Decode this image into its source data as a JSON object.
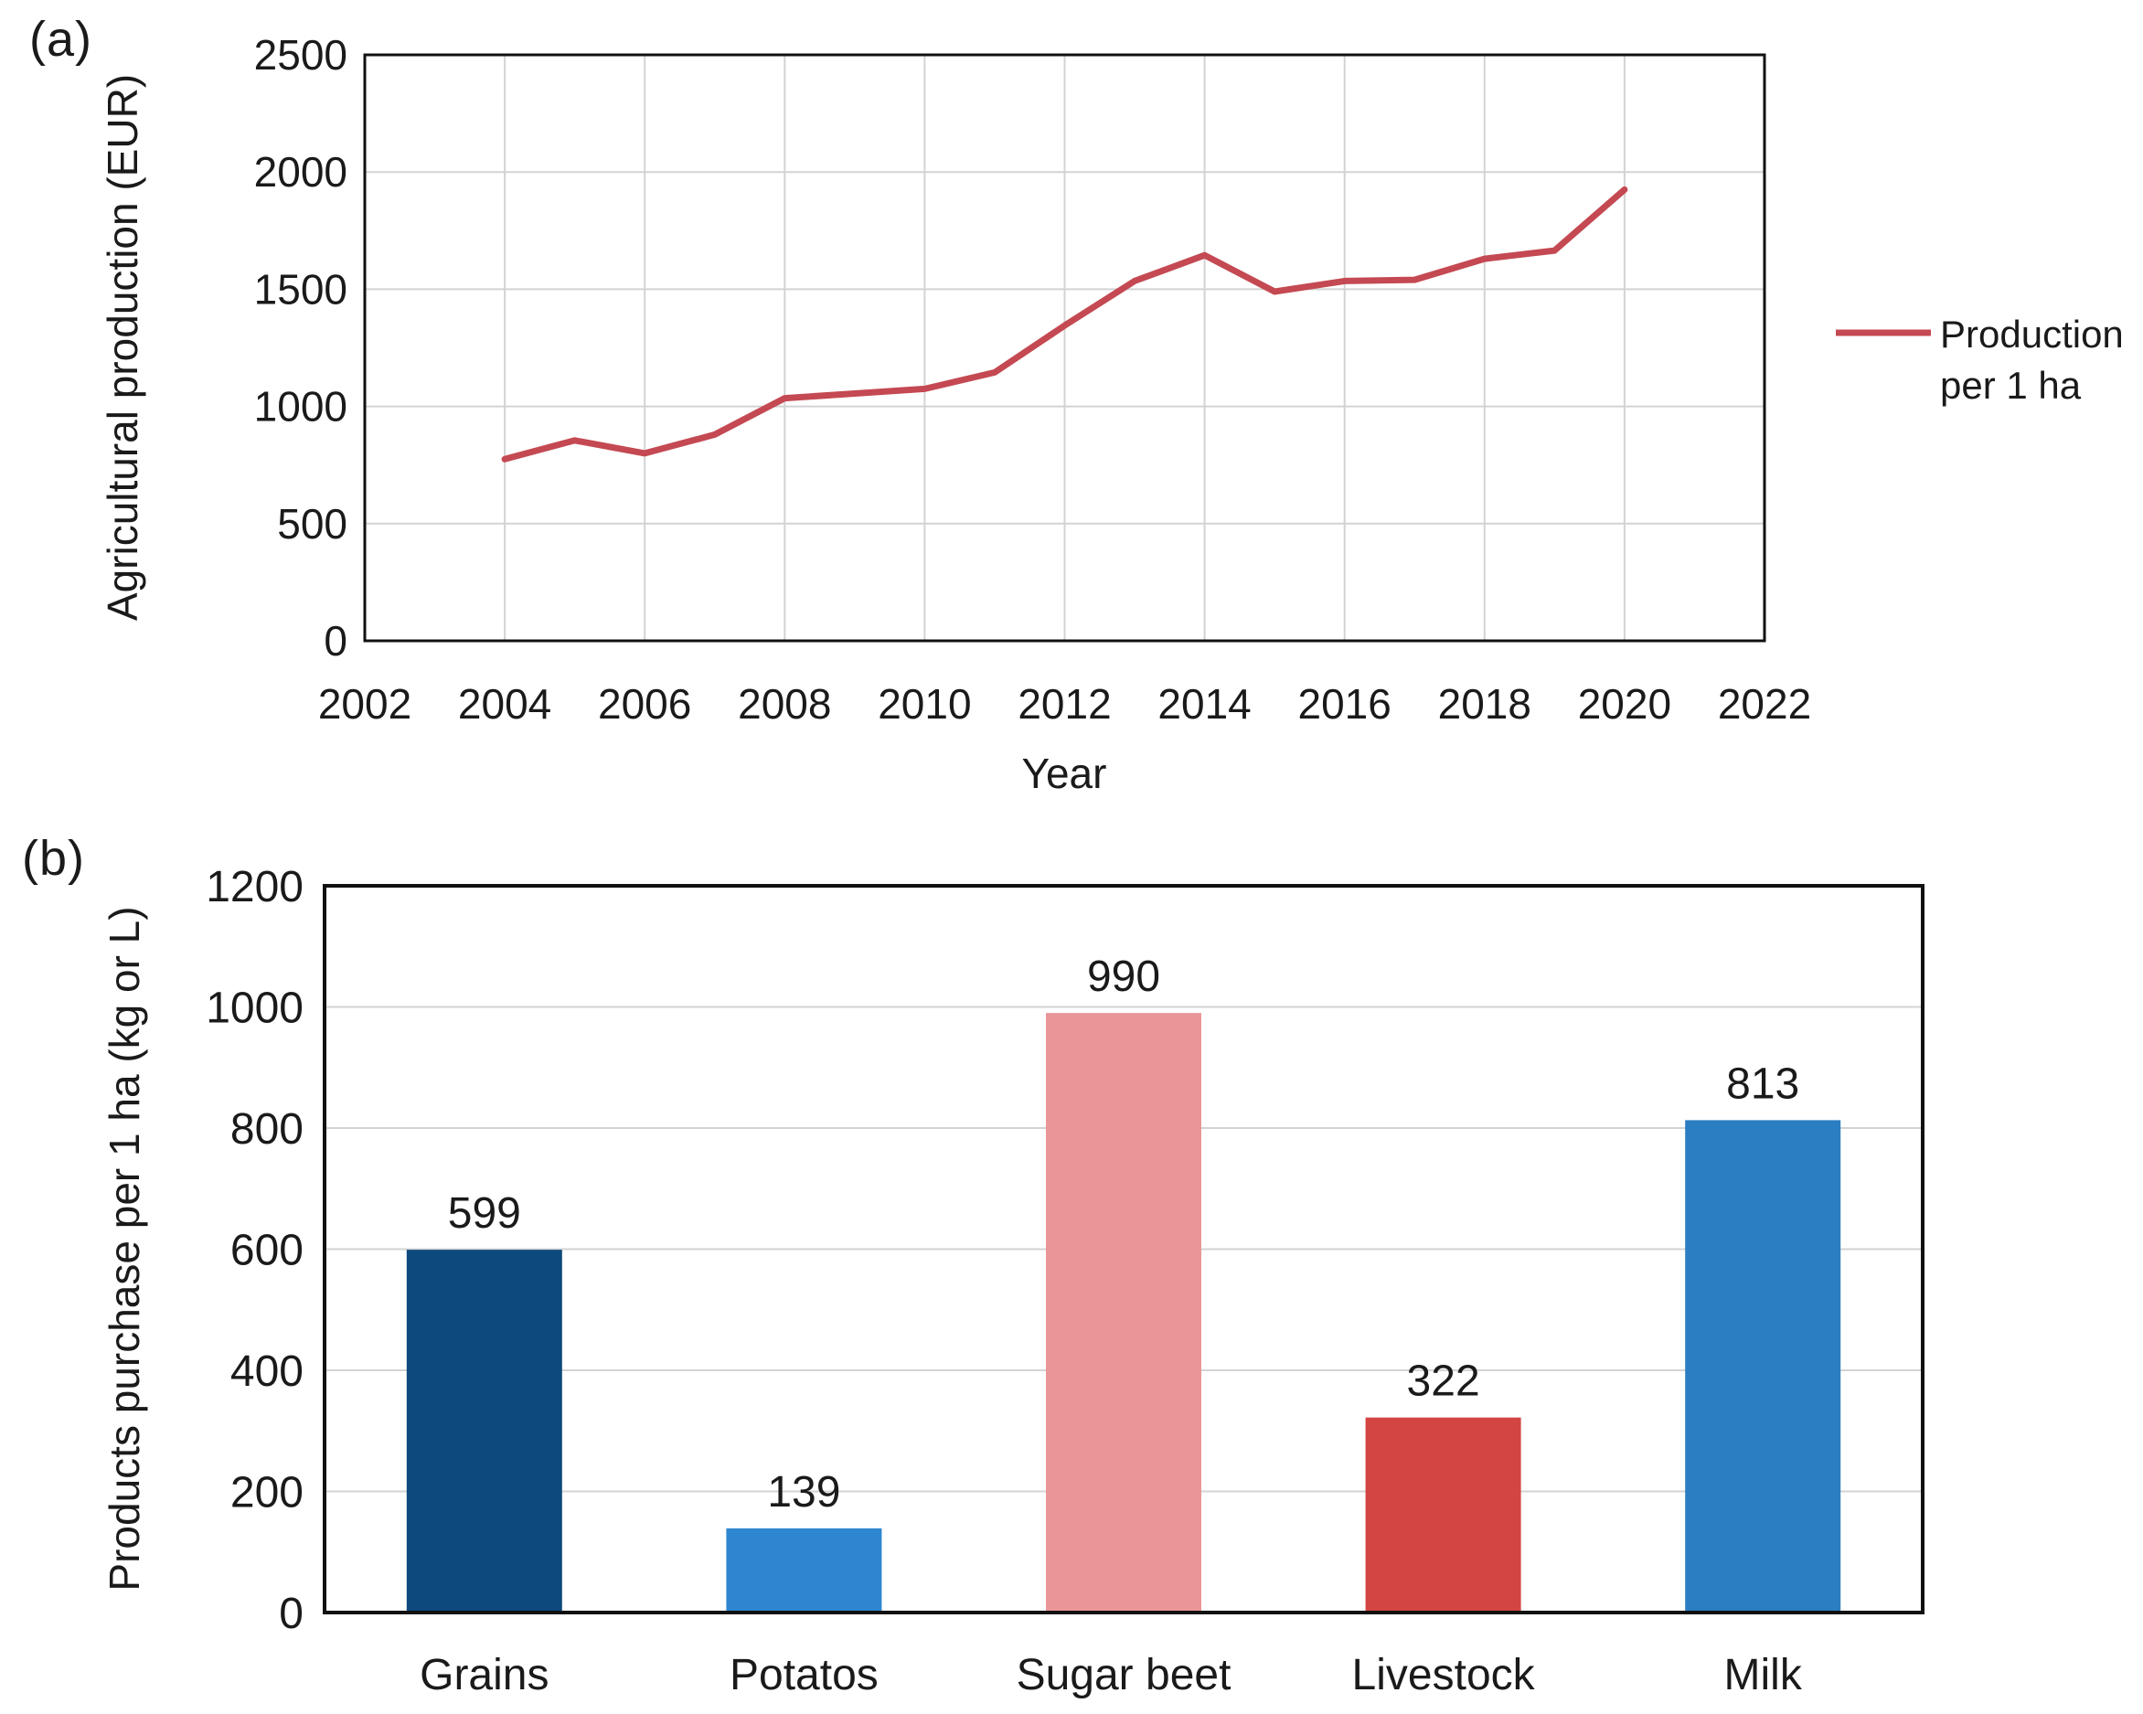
{
  "panel_a": {
    "label": "(a)",
    "legend_lines": [
      "Production",
      "per 1 ha"
    ]
  },
  "panel_b": {
    "label": "(b)"
  },
  "colors": {
    "line_red": "#C44952",
    "grid": "#D3D3D3",
    "frame": "#111111",
    "bar_grains": "#0D497C",
    "bar_potatos": "#2E86D1",
    "bar_sugar_beet": "#EA9698",
    "bar_livestock": "#D34542",
    "bar_milk": "#2B7EC1"
  },
  "chart_data": [
    {
      "type": "line",
      "title": "",
      "xlabel": "Year",
      "ylabel": "Agricultural production (EUR)",
      "xlim": [
        2002,
        2022
      ],
      "ylim": [
        0,
        2500
      ],
      "x_ticks": [
        2002,
        2004,
        2006,
        2008,
        2010,
        2012,
        2014,
        2016,
        2018,
        2020,
        2022
      ],
      "y_ticks": [
        0,
        500,
        1000,
        1500,
        2000,
        2500
      ],
      "grid": true,
      "legend_position": "right",
      "series": [
        {
          "name": "Production per 1 ha",
          "color": "#C44952",
          "x": [
            2004,
            2005,
            2006,
            2007,
            2008,
            2009,
            2010,
            2011,
            2012,
            2013,
            2014,
            2015,
            2016,
            2017,
            2018,
            2019,
            2020
          ],
          "values": [
            775,
            855,
            800,
            880,
            1035,
            1055,
            1075,
            1145,
            1345,
            1535,
            1645,
            1490,
            1535,
            1540,
            1630,
            1665,
            1925
          ]
        }
      ]
    },
    {
      "type": "bar",
      "title": "",
      "xlabel": "",
      "ylabel": "Products purchase per 1 ha (kg or L)",
      "categories": [
        "Grains",
        "Potatos",
        "Sugar beet",
        "Livestock",
        "Milk"
      ],
      "values": [
        599,
        139,
        990,
        322,
        813
      ],
      "bar_colors": [
        "#0D497C",
        "#2E86D1",
        "#EA9698",
        "#D34542",
        "#2B7EC1"
      ],
      "data_labels": [
        599,
        139,
        990,
        322,
        813
      ],
      "ylim": [
        0,
        1200
      ],
      "y_ticks": [
        0,
        200,
        400,
        600,
        800,
        1000,
        1200
      ],
      "grid": true,
      "legend_position": "none"
    }
  ]
}
